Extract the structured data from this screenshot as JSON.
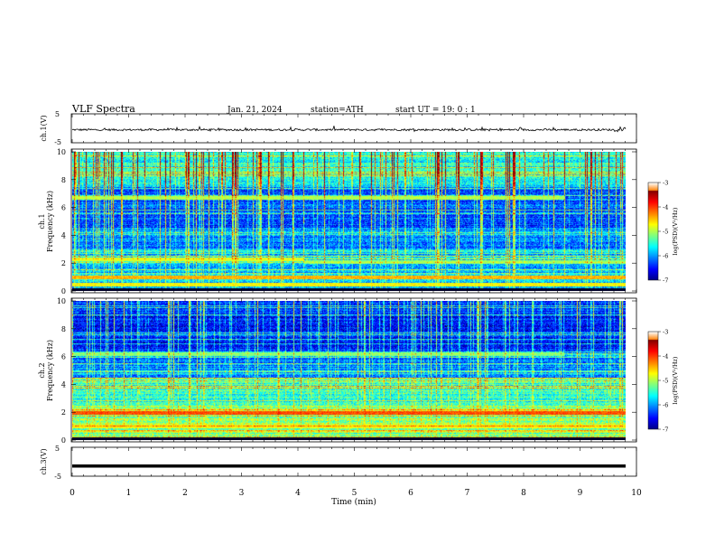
{
  "header": {
    "title": "VLF  Spectra",
    "date": "Jan. 21, 2024",
    "station": "station=ATH",
    "start": "start  UT  =   19: 0  : 1"
  },
  "chart_data": [
    {
      "type": "line",
      "panel": "ch1-waveform",
      "ylabel": "ch.1(V)",
      "yticks": [
        "5",
        "-5"
      ],
      "ylim": [
        -5,
        5
      ],
      "xlim": [
        0,
        10
      ],
      "description_series": [
        {
          "values_note": "noisy trace around -0.5 V with spikes to about 0.5 V",
          "mean": -0.5
        }
      ]
    },
    {
      "type": "heatmap",
      "panel": "ch1-spectrogram",
      "ylabel_top": "ch.1",
      "ylabel": "Frequency  (kHz)",
      "yticks": [
        "10",
        "8",
        "6",
        "4",
        "2",
        "0"
      ],
      "ylim": [
        0,
        10
      ],
      "xlim": [
        0,
        9.8
      ],
      "colorbar": {
        "label": "log(PSD)(V²/Hz)",
        "ticks": [
          "-3",
          "-4",
          "-5",
          "-6",
          "-7"
        ],
        "range": [
          -7,
          -3
        ]
      },
      "bands_khz": [
        {
          "f": 6.7,
          "t": [
            0,
            8.7
          ],
          "level": -4.8
        },
        {
          "f": 2.3,
          "t": [
            0,
            4.1
          ],
          "level": -4.6
        },
        {
          "f": 2.1,
          "t": [
            4.1,
            9.8
          ],
          "level": -4.9
        },
        {
          "f": 1.0,
          "t": [
            0,
            9.8
          ],
          "level": -4.2
        },
        {
          "f": 0.5,
          "t": [
            0,
            9.8
          ],
          "level": -4.5
        }
      ]
    },
    {
      "type": "heatmap",
      "panel": "ch2-spectrogram",
      "ylabel_top": "ch.2",
      "ylabel": "Frequency  (kHz)",
      "yticks": [
        "10",
        "8",
        "6",
        "4",
        "2",
        "0"
      ],
      "ylim": [
        0,
        10
      ],
      "xlim": [
        0,
        9.8
      ],
      "colorbar": {
        "label": "log(PSD)(V²/Hz)",
        "ticks": [
          "-3",
          "-4",
          "-5",
          "-6",
          "-7"
        ],
        "range": [
          -7,
          -3
        ]
      },
      "bands_khz": [
        {
          "f": 6.2,
          "t": [
            0,
            8.7
          ],
          "level": -5.0
        },
        {
          "f": 2.0,
          "t": [
            0,
            9.8
          ],
          "level": -3.8
        },
        {
          "f": 1.0,
          "t": [
            0,
            9.8
          ],
          "level": -4.5
        }
      ]
    },
    {
      "type": "line",
      "panel": "ch3-waveform",
      "ylabel": "ch.3(V)",
      "yticks": [
        "5",
        "-5"
      ],
      "ylim": [
        -5,
        5
      ],
      "xlim": [
        0,
        10
      ],
      "series": [
        {
          "values_note": "flat at about -1.5 V",
          "mean": -1.5
        }
      ]
    }
  ],
  "xaxis": {
    "label": "Time  (min)",
    "ticks": [
      "0",
      "1",
      "2",
      "3",
      "4",
      "5",
      "6",
      "7",
      "8",
      "9",
      "10"
    ]
  },
  "colors": {
    "colormap": [
      "#00007f",
      "#0000ff",
      "#007fff",
      "#00ffff",
      "#7fff7f",
      "#ffff00",
      "#ff7f00",
      "#ff0000",
      "#7f0000",
      "#ffffff"
    ]
  }
}
